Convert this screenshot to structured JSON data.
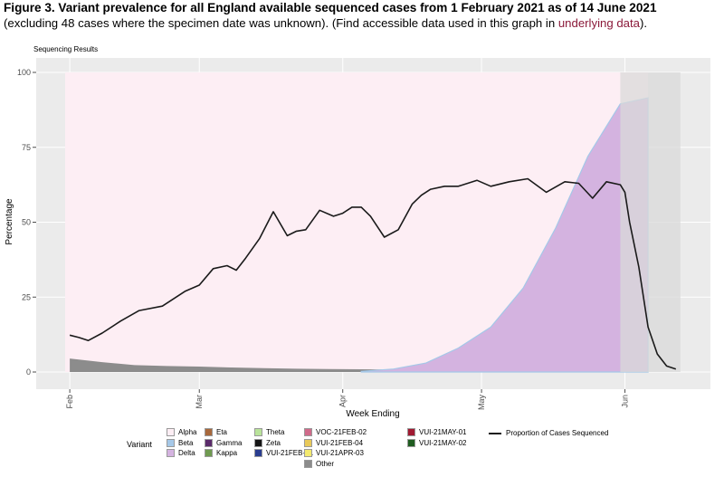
{
  "caption": {
    "title": "Figure 3. Variant prevalence for all England available sequenced cases from 1 February 2021 as of 14 June 2021",
    "subtitle_before_link": "(excluding 48 cases where the specimen date was unknown). (Find accessible data used in this graph in ",
    "link_text": "underlying data",
    "subtitle_after_link": ")."
  },
  "panel_label": "Sequencing Results",
  "chart_data": {
    "type": "area",
    "title": "Figure 3. Variant prevalence for all England available sequenced cases from 1 February 2021 as of 14 June 2021",
    "xlabel": "Week Ending",
    "ylabel": "Percentage",
    "ylim": [
      0,
      100
    ],
    "yticks": [
      0,
      25,
      50,
      75,
      100
    ],
    "xticks": [
      {
        "date": "2021-02-01",
        "label": "Feb"
      },
      {
        "date": "2021-03-01",
        "label": "Mar"
      },
      {
        "date": "2021-04-01",
        "label": "Apr"
      },
      {
        "date": "2021-05-01",
        "label": "May"
      },
      {
        "date": "2021-06-01",
        "label": "Jun"
      }
    ],
    "xlim": [
      "2021-01-31",
      "2021-06-14"
    ],
    "grid": true,
    "legend_placement": "bottom",
    "legend_title": "Variant",
    "shaded_region": {
      "from": "2021-05-31",
      "to": "2021-06-13",
      "color": "#d9d9d9"
    },
    "colors": {
      "Alpha": "#fdeef4",
      "Beta": "#a5c8e8",
      "Delta": "#d4b3e0",
      "Eta": "#a8683c",
      "Gamma": "#5a2a6a",
      "Kappa": "#6f9a50",
      "Theta": "#b9e39a",
      "Zeta": "#151515",
      "VUI-21FEB-01": "#2a3d8f",
      "VOC-21FEB-02": "#d06a8a",
      "VUI-21FEB-04": "#e8c95a",
      "VUI-21APR-03": "#f3e96f",
      "VUI-21MAY-01": "#a11a32",
      "VUI-21MAY-02": "#1f5c20",
      "Other": "#8c8c8c",
      "Proportion of Cases Sequenced": "#1a1a1a"
    },
    "series": [
      {
        "name": "Other",
        "x": [
          "2021-02-01",
          "2021-02-08",
          "2021-02-15",
          "2021-02-22",
          "2021-03-01",
          "2021-03-08",
          "2021-03-15",
          "2021-03-22",
          "2021-03-29",
          "2021-04-05",
          "2021-04-12",
          "2021-04-19",
          "2021-04-26",
          "2021-05-03",
          "2021-05-10",
          "2021-05-17",
          "2021-05-24",
          "2021-05-31",
          "2021-06-06"
        ],
        "values": [
          4.5,
          3.3,
          2.3,
          2.0,
          1.8,
          1.5,
          1.3,
          1.1,
          1.0,
          0.9,
          0.8,
          0.7,
          0.6,
          0.5,
          0.4,
          0.3,
          0.2,
          0.2,
          0.1
        ]
      },
      {
        "name": "Delta",
        "x": [
          "2021-04-05",
          "2021-04-12",
          "2021-04-19",
          "2021-04-26",
          "2021-05-03",
          "2021-05-10",
          "2021-05-17",
          "2021-05-24",
          "2021-05-31",
          "2021-06-06"
        ],
        "values": [
          0.2,
          1.0,
          3.0,
          8.0,
          15.0,
          28.0,
          48.0,
          72.0,
          89.5,
          91.5
        ]
      },
      {
        "name": "Proportion of Cases Sequenced",
        "x": [
          "2021-02-01",
          "2021-02-03",
          "2021-02-05",
          "2021-02-08",
          "2021-02-12",
          "2021-02-16",
          "2021-02-21",
          "2021-02-26",
          "2021-03-01",
          "2021-03-04",
          "2021-03-07",
          "2021-03-09",
          "2021-03-11",
          "2021-03-14",
          "2021-03-17",
          "2021-03-20",
          "2021-03-22",
          "2021-03-24",
          "2021-03-27",
          "2021-03-30",
          "2021-04-01",
          "2021-04-03",
          "2021-04-05",
          "2021-04-07",
          "2021-04-10",
          "2021-04-13",
          "2021-04-16",
          "2021-04-18",
          "2021-04-20",
          "2021-04-23",
          "2021-04-26",
          "2021-04-30",
          "2021-05-03",
          "2021-05-07",
          "2021-05-11",
          "2021-05-15",
          "2021-05-19",
          "2021-05-22",
          "2021-05-25",
          "2021-05-28",
          "2021-05-31",
          "2021-06-01",
          "2021-06-02",
          "2021-06-04",
          "2021-06-06",
          "2021-06-08",
          "2021-06-10",
          "2021-06-12"
        ],
        "values": [
          12.3,
          11.5,
          10.5,
          13.0,
          17.0,
          20.5,
          22.0,
          27.0,
          29.0,
          34.5,
          35.5,
          34.0,
          38.0,
          44.5,
          53.5,
          45.5,
          47.0,
          47.5,
          54.0,
          52.0,
          53.0,
          55.0,
          55.0,
          52.0,
          45.0,
          47.5,
          56.0,
          59.0,
          61.0,
          62.0,
          62.0,
          64.0,
          62.0,
          63.5,
          64.5,
          60.0,
          63.5,
          63.0,
          58.0,
          63.5,
          62.5,
          60.0,
          50.0,
          35.0,
          15.0,
          6.0,
          2.0,
          1.0
        ]
      }
    ]
  },
  "legend": {
    "title": "Variant",
    "columns": [
      [
        "Alpha",
        "Beta",
        "Delta"
      ],
      [
        "Eta",
        "Gamma",
        "Kappa"
      ],
      [
        "Theta",
        "Zeta",
        "VUI-21FEB-01"
      ],
      [
        "VOC-21FEB-02",
        "VUI-21FEB-04",
        "VUI-21APR-03",
        "Other"
      ],
      [
        "VUI-21MAY-01",
        "VUI-21MAY-02"
      ]
    ],
    "line_label": "Proportion of Cases Sequenced"
  }
}
